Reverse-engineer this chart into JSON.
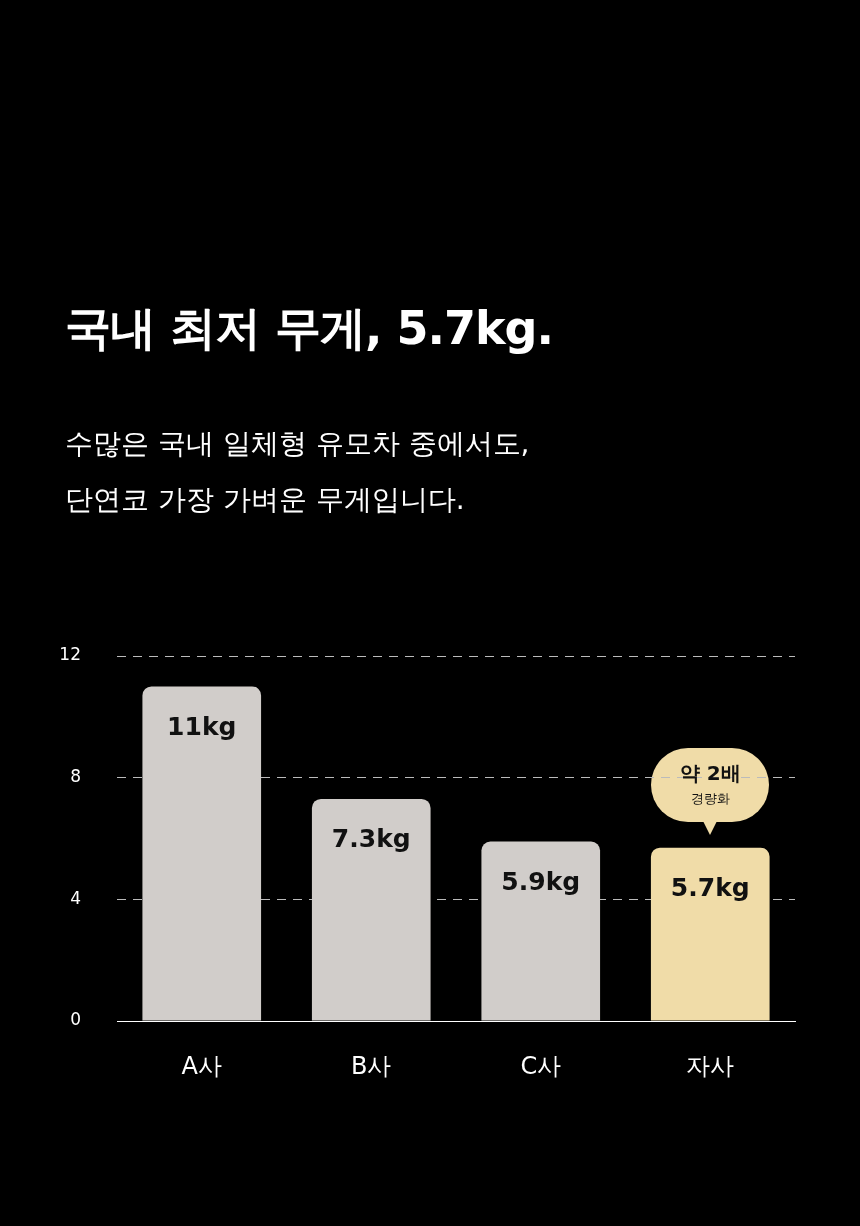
{
  "chart_data": {
    "type": "bar",
    "title": "국내 최저 무게, 5.7kg.",
    "subtitle": "수많은 국내 일체형 유모차 중에서도,\n단연코 가장 가벼운 무게입니다.",
    "categories": [
      "A사",
      "B사",
      "C사",
      "자사"
    ],
    "values": [
      11,
      7.3,
      5.9,
      5.7
    ],
    "colors": [
      "#d1cdca",
      "#d1cdca",
      "#d1cdca",
      "#f0dca8"
    ],
    "value_labels": [
      "11kg",
      "7.3kg",
      "5.9kg",
      "5.7kg"
    ],
    "ylim": [
      0,
      12
    ],
    "yticks": [
      0,
      4,
      8,
      12
    ],
    "grid": "y",
    "legend": false,
    "annotations": [
      "약 2배",
      "경량화"
    ]
  }
}
